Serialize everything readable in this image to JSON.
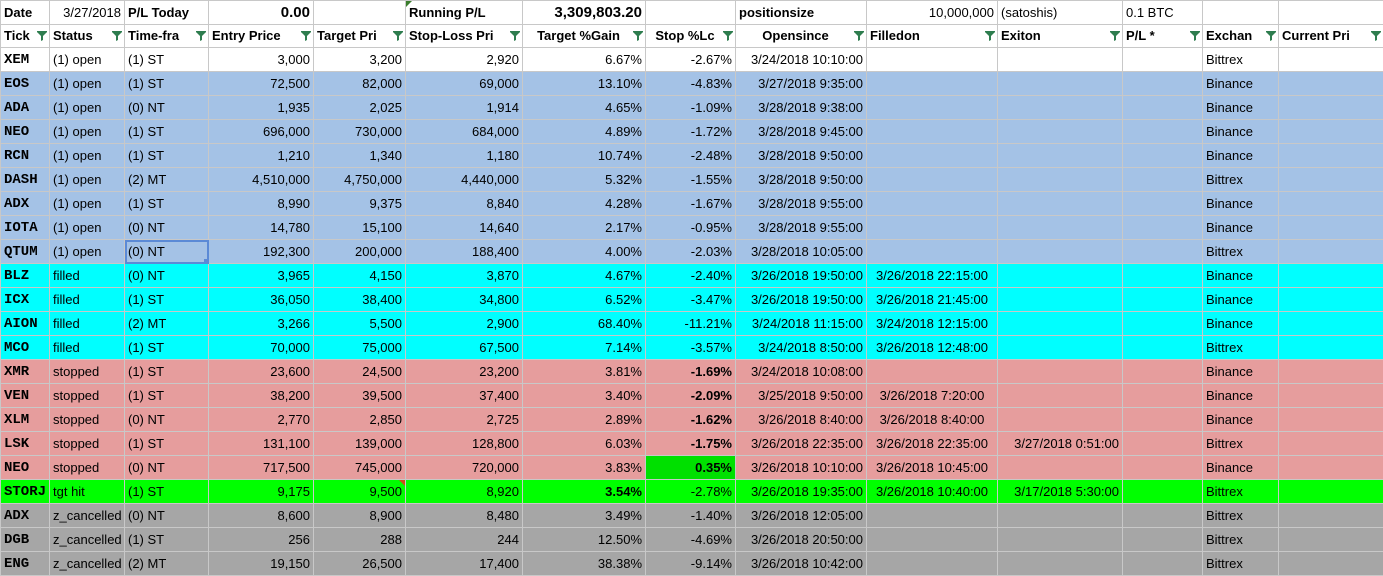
{
  "colors": {
    "open": "#a4c2e6",
    "filled": "#00ffff",
    "stopped": "#e69d9d",
    "tgthit": "#00ff00",
    "cancelled": "#a6a6a6",
    "stop_green": "#00e000"
  },
  "top_row": {
    "date_label": "Date",
    "date_value": "3/27/2018",
    "pl_today_label": "P/L Today",
    "pl_today_value": "0.00",
    "running_pl_label": "Running P/L",
    "running_pl_value": "3,309,803.20",
    "positionsize_label": "positionsize",
    "positionsize_value": "10,000,000",
    "satoshis_label": "(satoshis)",
    "btc_value": "0.1 BTC"
  },
  "headers": [
    "Tick",
    "Status",
    "Time-fra",
    "Entry Price",
    "Target Pri",
    "Stop-Loss Pri",
    "Target %Gain",
    "Stop %Lc",
    "Opensince",
    "Filledon",
    "Exiton",
    "P/L *",
    "Exchan",
    "Current Pri"
  ],
  "rows": [
    {
      "state": "white",
      "ticker": "XEM",
      "status": "(1) open",
      "tf": "(1) ST",
      "entry": "3,000",
      "target": "3,200",
      "stop": "2,920",
      "gain": "6.67%",
      "loss": "-2.67%",
      "open": "3/24/2018 10:10:00",
      "filled": "",
      "exit": "",
      "pl": "",
      "exch": "Bittrex",
      "cur": ""
    },
    {
      "state": "open",
      "ticker": "EOS",
      "status": "(1) open",
      "tf": "(1) ST",
      "entry": "72,500",
      "target": "82,000",
      "stop": "69,000",
      "gain": "13.10%",
      "loss": "-4.83%",
      "open": "3/27/2018 9:35:00",
      "filled": "",
      "exit": "",
      "pl": "",
      "exch": "Binance",
      "cur": ""
    },
    {
      "state": "open",
      "ticker": "ADA",
      "status": "(1) open",
      "tf": "(0) NT",
      "entry": "1,935",
      "target": "2,025",
      "stop": "1,914",
      "gain": "4.65%",
      "loss": "-1.09%",
      "open": "3/28/2018 9:38:00",
      "filled": "",
      "exit": "",
      "pl": "",
      "exch": "Binance",
      "cur": ""
    },
    {
      "state": "open",
      "ticker": "NEO",
      "status": "(1) open",
      "tf": "(1) ST",
      "entry": "696,000",
      "target": "730,000",
      "stop": "684,000",
      "gain": "4.89%",
      "loss": "-1.72%",
      "open": "3/28/2018 9:45:00",
      "filled": "",
      "exit": "",
      "pl": "",
      "exch": "Binance",
      "cur": ""
    },
    {
      "state": "open",
      "ticker": "RCN",
      "status": "(1) open",
      "tf": "(1) ST",
      "entry": "1,210",
      "target": "1,340",
      "stop": "1,180",
      "gain": "10.74%",
      "loss": "-2.48%",
      "open": "3/28/2018 9:50:00",
      "filled": "",
      "exit": "",
      "pl": "",
      "exch": "Binance",
      "cur": ""
    },
    {
      "state": "open",
      "ticker": "DASH",
      "status": "(1) open",
      "tf": "(2) MT",
      "entry": "4,510,000",
      "target": "4,750,000",
      "stop": "4,440,000",
      "gain": "5.32%",
      "loss": "-1.55%",
      "open": "3/28/2018 9:50:00",
      "filled": "",
      "exit": "",
      "pl": "",
      "exch": "Bittrex",
      "cur": ""
    },
    {
      "state": "open",
      "ticker": "ADX",
      "status": "(1) open",
      "tf": "(1) ST",
      "entry": "8,990",
      "target": "9,375",
      "stop": "8,840",
      "gain": "4.28%",
      "loss": "-1.67%",
      "open": "3/28/2018 9:55:00",
      "filled": "",
      "exit": "",
      "pl": "",
      "exch": "Binance",
      "cur": ""
    },
    {
      "state": "open",
      "ticker": "IOTA",
      "status": "(1) open",
      "tf": "(0) NT",
      "entry": "14,780",
      "target": "15,100",
      "stop": "14,640",
      "gain": "2.17%",
      "loss": "-0.95%",
      "open": "3/28/2018 9:55:00",
      "filled": "",
      "exit": "",
      "pl": "",
      "exch": "Binance",
      "cur": ""
    },
    {
      "state": "open",
      "ticker": "QTUM",
      "status": "(1) open",
      "tf": "(0) NT",
      "entry": "192,300",
      "target": "200,000",
      "stop": "188,400",
      "gain": "4.00%",
      "loss": "-2.03%",
      "open": "3/28/2018 10:05:00",
      "filled": "",
      "exit": "",
      "pl": "",
      "exch": "Bittrex",
      "cur": "",
      "selected": true
    },
    {
      "state": "filled",
      "ticker": "BLZ",
      "status": "filled",
      "tf": "(0) NT",
      "entry": "3,965",
      "target": "4,150",
      "stop": "3,870",
      "gain": "4.67%",
      "loss": "-2.40%",
      "open": "3/26/2018 19:50:00",
      "filled": "3/26/2018 22:15:00",
      "exit": "",
      "pl": "",
      "exch": "Binance",
      "cur": ""
    },
    {
      "state": "filled",
      "ticker": "ICX",
      "status": "filled",
      "tf": "(1) ST",
      "entry": "36,050",
      "target": "38,400",
      "stop": "34,800",
      "gain": "6.52%",
      "loss": "-3.47%",
      "open": "3/26/2018 19:50:00",
      "filled": "3/26/2018 21:45:00",
      "exit": "",
      "pl": "",
      "exch": "Binance",
      "cur": ""
    },
    {
      "state": "filled",
      "ticker": "AION",
      "status": "filled",
      "tf": "(2) MT",
      "entry": "3,266",
      "target": "5,500",
      "stop": "2,900",
      "gain": "68.40%",
      "loss": "-11.21%",
      "open": "3/24/2018 11:15:00",
      "filled": "3/24/2018 12:15:00",
      "exit": "",
      "pl": "",
      "exch": "Binance",
      "cur": ""
    },
    {
      "state": "filled",
      "ticker": "MCO",
      "status": "filled",
      "tf": "(1) ST",
      "entry": "70,000",
      "target": "75,000",
      "stop": "67,500",
      "gain": "7.14%",
      "loss": "-3.57%",
      "open": "3/24/2018 8:50:00",
      "filled": "3/26/2018 12:48:00",
      "exit": "",
      "pl": "",
      "exch": "Bittrex",
      "cur": ""
    },
    {
      "state": "stopped",
      "ticker": "XMR",
      "status": "stopped",
      "tf": "(1) ST",
      "entry": "23,600",
      "target": "24,500",
      "stop": "23,200",
      "gain": "3.81%",
      "loss": "-1.69%",
      "lossBold": true,
      "open": "3/24/2018 10:08:00",
      "filled": "",
      "exit": "",
      "pl": "",
      "exch": "Binance",
      "cur": ""
    },
    {
      "state": "stopped",
      "ticker": "VEN",
      "status": "stopped",
      "tf": "(1) ST",
      "entry": "38,200",
      "target": "39,500",
      "stop": "37,400",
      "gain": "3.40%",
      "loss": "-2.09%",
      "lossBold": true,
      "open": "3/25/2018 9:50:00",
      "filled": "3/26/2018 7:20:00",
      "exit": "",
      "pl": "",
      "exch": "Binance",
      "cur": ""
    },
    {
      "state": "stopped",
      "ticker": "XLM",
      "status": "stopped",
      "tf": "(0) NT",
      "entry": "2,770",
      "target": "2,850",
      "stop": "2,725",
      "gain": "2.89%",
      "loss": "-1.62%",
      "lossBold": true,
      "open": "3/26/2018 8:40:00",
      "filled": "3/26/2018 8:40:00",
      "exit": "",
      "pl": "",
      "exch": "Binance",
      "cur": ""
    },
    {
      "state": "stopped",
      "ticker": "LSK",
      "status": "stopped",
      "tf": "(1) ST",
      "entry": "131,100",
      "target": "139,000",
      "stop": "128,800",
      "gain": "6.03%",
      "loss": "-1.75%",
      "lossBold": true,
      "open": "3/26/2018 22:35:00",
      "filled": "3/26/2018 22:35:00",
      "exit": "3/27/2018 0:51:00",
      "pl": "",
      "exch": "Bittrex",
      "cur": ""
    },
    {
      "state": "stopped",
      "ticker": "NEO",
      "status": "stopped",
      "tf": "(0) NT",
      "entry": "717,500",
      "target": "745,000",
      "stop": "720,000",
      "gain": "3.83%",
      "loss": "0.35%",
      "lossBold": true,
      "lossGreen": true,
      "open": "3/26/2018 10:10:00",
      "filled": "3/26/2018 10:45:00",
      "exit": "",
      "pl": "",
      "exch": "Binance",
      "cur": ""
    },
    {
      "state": "tgthit",
      "ticker": "STORJ",
      "status": "tgt hit",
      "tf": "(1) ST",
      "entry": "9,175",
      "target": "9,500",
      "stop": "8,920",
      "gain": "3.54%",
      "gainBold": true,
      "loss": "-2.78%",
      "open": "3/26/2018 19:35:00",
      "filled": "3/26/2018 10:40:00",
      "exit": "3/17/2018 5:30:00",
      "pl": "",
      "exch": "Bittrex",
      "cur": ""
    },
    {
      "state": "cancelled",
      "ticker": "ADX",
      "status": "z_cancelled",
      "tf": "(0) NT",
      "entry": "8,600",
      "target": "8,900",
      "stop": "8,480",
      "gain": "3.49%",
      "loss": "-1.40%",
      "open": "3/26/2018 12:05:00",
      "filled": "",
      "exit": "",
      "pl": "",
      "exch": "Bittrex",
      "cur": ""
    },
    {
      "state": "cancelled",
      "ticker": "DGB",
      "status": "z_cancelled",
      "tf": "(1) ST",
      "entry": "256",
      "target": "288",
      "stop": "244",
      "gain": "12.50%",
      "loss": "-4.69%",
      "open": "3/26/2018 20:50:00",
      "filled": "",
      "exit": "",
      "pl": "",
      "exch": "Bittrex",
      "cur": ""
    },
    {
      "state": "cancelled",
      "ticker": "ENG",
      "status": "z_cancelled",
      "tf": "(2) MT",
      "entry": "19,150",
      "target": "26,500",
      "stop": "17,400",
      "gain": "38.38%",
      "loss": "-9.14%",
      "open": "3/26/2018 10:42:00",
      "filled": "",
      "exit": "",
      "pl": "",
      "exch": "Bittrex",
      "cur": ""
    }
  ]
}
